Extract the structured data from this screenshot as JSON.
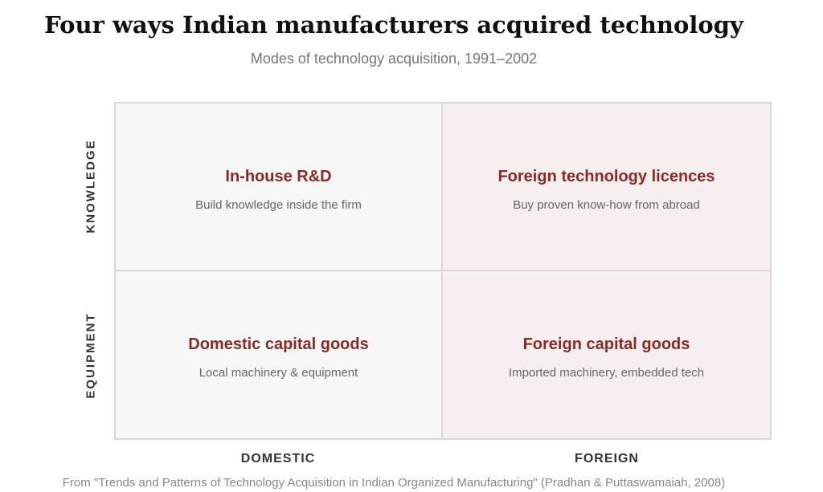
{
  "title": "Four ways Indian manufacturers acquired technology",
  "subtitle": "Modes of technology acquisition, 1991–2002",
  "rows": [
    "KNOWLEDGE",
    "EQUIPMENT"
  ],
  "columns": [
    "DOMESTIC",
    "FOREIGN"
  ],
  "quadrants": [
    {
      "title": "In-house R&D",
      "description": "Build knowledge inside the firm"
    },
    {
      "title": "Foreign technology licences",
      "description": "Buy proven know-how from abroad"
    },
    {
      "title": "Domestic capital goods",
      "description": "Local machinery & equipment"
    },
    {
      "title": "Foreign capital goods",
      "description": "Imported machinery, embedded tech"
    }
  ],
  "source": "From \"Trends and Patterns of Technology Acquisition in Indian Organized Manufacturing\" (Pradhan & Puttaswamaiah, 2008)",
  "colors": {
    "accent": "#8b2a24",
    "domestic_fill": "#f7f7f7",
    "foreign_fill": "#f7efef",
    "border": "#d8d8d8"
  }
}
